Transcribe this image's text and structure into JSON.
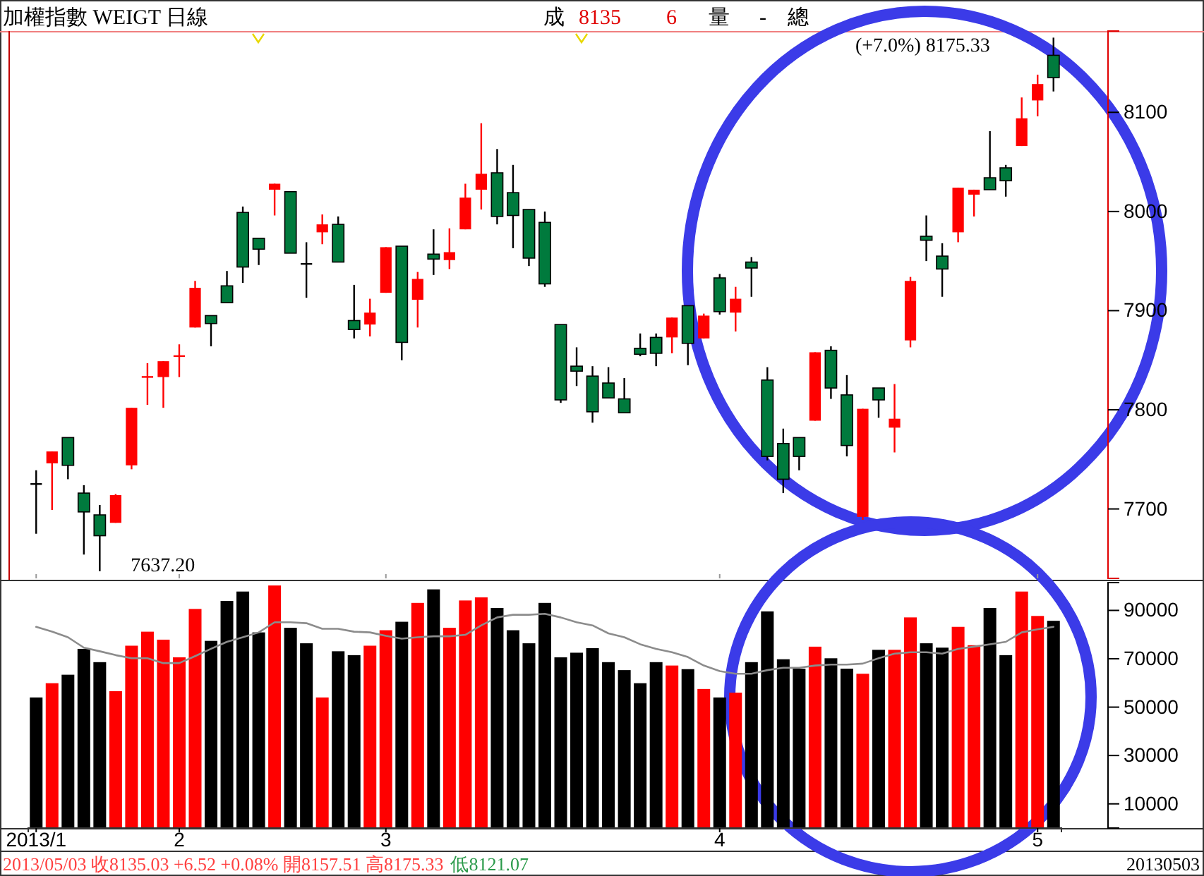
{
  "chart_data": [
    {
      "type": "candlestick",
      "title": "加權指數 WEIGT 日線",
      "categories": [
        "2013/1",
        null,
        null,
        null,
        null,
        null,
        null,
        null,
        null,
        "2",
        null,
        null,
        null,
        null,
        null,
        null,
        null,
        null,
        null,
        null,
        null,
        null,
        "3",
        null,
        null,
        null,
        null,
        null,
        null,
        null,
        null,
        null,
        null,
        null,
        null,
        null,
        null,
        null,
        null,
        null,
        null,
        null,
        null,
        "4",
        null,
        null,
        null,
        null,
        null,
        null,
        null,
        null,
        null,
        null,
        null,
        null,
        null,
        null,
        null,
        null,
        null,
        null,
        null,
        "5",
        null
      ],
      "ohlc": [
        [
          7725,
          7739,
          7675,
          7726
        ],
        [
          7746,
          7758,
          7699,
          7758
        ],
        [
          7772,
          7772,
          7730,
          7744
        ],
        [
          7716,
          7724,
          7654,
          7697
        ],
        [
          7694,
          7704,
          7637.2,
          7673
        ],
        [
          7686,
          7715,
          7686,
          7714
        ],
        [
          7744,
          7802,
          7740,
          7802
        ],
        [
          7833,
          7847,
          7805,
          7834
        ],
        [
          7833,
          7849,
          7802,
          7849
        ],
        [
          7854,
          7866,
          7833,
          7855
        ],
        [
          7883,
          7930,
          7883,
          7923
        ],
        [
          7895,
          7895,
          7864,
          7887
        ],
        [
          7925,
          7940,
          7908,
          7908
        ],
        [
          7999,
          8005,
          7928,
          7944
        ],
        [
          7973,
          7973,
          7946,
          7962
        ],
        [
          8022,
          8028,
          7996,
          8028
        ],
        [
          8020,
          8020,
          7958,
          7958
        ],
        [
          7948,
          7969,
          7913,
          7948
        ],
        [
          7979,
          7997,
          7967,
          7987
        ],
        [
          7987,
          7995,
          7949,
          7949
        ],
        [
          7890,
          7926,
          7872,
          7881
        ],
        [
          7886,
          7912,
          7874,
          7898
        ],
        [
          7918,
          7964,
          7918,
          7964
        ],
        [
          7965,
          7965,
          7850,
          7868
        ],
        [
          7911,
          7939,
          7883,
          7932
        ],
        [
          7957,
          7982,
          7936,
          7952
        ],
        [
          7951,
          7983,
          7942,
          7959
        ],
        [
          7982,
          8028,
          7982,
          8014
        ],
        [
          8022,
          8089,
          8002,
          8038
        ],
        [
          8039,
          8063,
          7987,
          7995
        ],
        [
          8019,
          8047,
          7963,
          7996
        ],
        [
          8002,
          8002,
          7945,
          7953
        ],
        [
          7989,
          8000,
          7924,
          7927
        ],
        [
          7886,
          7886,
          7807,
          7810
        ],
        [
          7844,
          7863,
          7824,
          7839
        ],
        [
          7834,
          7844,
          7787,
          7798
        ],
        [
          7827,
          7843,
          7812,
          7812
        ],
        [
          7811,
          7832,
          7797,
          7797
        ],
        [
          7862,
          7877,
          7854,
          7856
        ],
        [
          7873,
          7877,
          7844,
          7857
        ],
        [
          7873,
          7893,
          7857,
          7893
        ],
        [
          7905,
          7905,
          7845,
          7867
        ],
        [
          7872,
          7897,
          7872,
          7895
        ],
        [
          7933,
          7937,
          7896,
          7899
        ],
        [
          7898,
          7924,
          7879,
          7912
        ],
        [
          7949,
          7954,
          7914,
          7943
        ],
        [
          7830,
          7843,
          7749,
          7753
        ],
        [
          7766,
          7781,
          7716,
          7730
        ],
        [
          7772,
          7772,
          7739,
          7753
        ],
        [
          7789,
          7858,
          7789,
          7858
        ],
        [
          7860,
          7864,
          7811,
          7822
        ],
        [
          7815,
          7835,
          7753,
          7764
        ],
        [
          7692,
          7801,
          7689,
          7801
        ],
        [
          7822,
          7822,
          7792,
          7810
        ],
        [
          7782,
          7826,
          7757,
          7791
        ],
        [
          7870,
          7934,
          7863,
          7930
        ],
        [
          7975,
          7996,
          7950,
          7971
        ],
        [
          7955,
          7968,
          7914,
          7942
        ],
        [
          7979,
          8024,
          7969,
          8024
        ],
        [
          8017,
          8022,
          7995,
          8022
        ],
        [
          8034,
          8081,
          8022,
          8022
        ],
        [
          8044,
          8047,
          8015,
          8031
        ],
        [
          8066,
          8115,
          8066,
          8094
        ],
        [
          8112,
          8138,
          8096,
          8128.51
        ],
        [
          8157.51,
          8175.33,
          8121.07,
          8135.03
        ]
      ],
      "colors": [
        "#000000",
        "#ff0000",
        "#007a3d",
        "#007a3d",
        "#007a3d",
        "#ff0000",
        "#ff0000",
        "#ff0000",
        "#ff0000",
        "#ff0000",
        "#ff0000",
        "#007a3d",
        "#007a3d",
        "#007a3d",
        "#007a3d",
        "#ff0000",
        "#007a3d",
        "#000000",
        "#ff0000",
        "#007a3d",
        "#007a3d",
        "#ff0000",
        "#ff0000",
        "#007a3d",
        "#ff0000",
        "#007a3d",
        "#ff0000",
        "#ff0000",
        "#ff0000",
        "#007a3d",
        "#007a3d",
        "#007a3d",
        "#007a3d",
        "#007a3d",
        "#007a3d",
        "#007a3d",
        "#007a3d",
        "#007a3d",
        "#007a3d",
        "#007a3d",
        "#ff0000",
        "#007a3d",
        "#ff0000",
        "#007a3d",
        "#ff0000",
        "#007a3d",
        "#007a3d",
        "#007a3d",
        "#007a3d",
        "#ff0000",
        "#007a3d",
        "#007a3d",
        "#ff0000",
        "#007a3d",
        "#ff0000",
        "#ff0000",
        "#007a3d",
        "#007a3d",
        "#ff0000",
        "#ff0000",
        "#007a3d",
        "#007a3d",
        "#ff0000",
        "#ff0000",
        "#007a3d"
      ],
      "ylim": [
        7630,
        8182
      ],
      "yticks": [
        7700,
        7800,
        7900,
        8000,
        8100
      ],
      "tick_labels": "y",
      "annotations": [
        "(+7.0%) 8175.33",
        "7637.20",
        "成",
        "8135",
        "6",
        "量",
        "-",
        "總"
      ]
    },
    {
      "type": "bar",
      "categories": [
        "2013/1",
        null,
        null,
        null,
        null,
        null,
        null,
        null,
        null,
        "2",
        null,
        null,
        null,
        null,
        null,
        null,
        null,
        null,
        null,
        null,
        null,
        null,
        "3",
        null,
        null,
        null,
        null,
        null,
        null,
        null,
        null,
        null,
        null,
        null,
        null,
        null,
        null,
        null,
        null,
        null,
        null,
        null,
        null,
        "4",
        null,
        null,
        null,
        null,
        null,
        null,
        null,
        null,
        null,
        null,
        null,
        null,
        null,
        null,
        null,
        null,
        null,
        null,
        null,
        "5",
        null
      ],
      "series": [
        {
          "type": "bar",
          "values": [
            54000,
            59900,
            63400,
            74100,
            68600,
            56600,
            75400,
            81200,
            77900,
            70600,
            90600,
            77400,
            93900,
            97800,
            80900,
            100300,
            82800,
            76400,
            54000,
            73100,
            71500,
            75400,
            81800,
            85300,
            93100,
            98700,
            82800,
            94100,
            95400,
            91000,
            81800,
            76400,
            93100,
            70600,
            72500,
            74400,
            68600,
            65300,
            59900,
            68600,
            67200,
            65700,
            57500,
            54000,
            56000,
            68600,
            89600,
            69800,
            65900,
            75000,
            70200,
            65900,
            63800,
            73700,
            73700,
            87100,
            76400,
            74600,
            83200,
            75600,
            91000,
            71500,
            97800,
            87700,
            85700
          ],
          "colors": [
            "#000000",
            "#ff0000",
            "#000000",
            "#000000",
            "#000000",
            "#ff0000",
            "#ff0000",
            "#ff0000",
            "#ff0000",
            "#ff0000",
            "#ff0000",
            "#000000",
            "#000000",
            "#000000",
            "#000000",
            "#ff0000",
            "#000000",
            "#000000",
            "#ff0000",
            "#000000",
            "#000000",
            "#ff0000",
            "#ff0000",
            "#000000",
            "#ff0000",
            "#000000",
            "#ff0000",
            "#ff0000",
            "#ff0000",
            "#000000",
            "#000000",
            "#000000",
            "#000000",
            "#000000",
            "#000000",
            "#000000",
            "#000000",
            "#000000",
            "#000000",
            "#000000",
            "#ff0000",
            "#000000",
            "#ff0000",
            "#000000",
            "#ff0000",
            "#000000",
            "#000000",
            "#000000",
            "#000000",
            "#ff0000",
            "#000000",
            "#000000",
            "#ff0000",
            "#000000",
            "#ff0000",
            "#ff0000",
            "#000000",
            "#000000",
            "#ff0000",
            "#ff0000",
            "#000000",
            "#000000",
            "#ff0000",
            "#ff0000",
            "#000000"
          ]
        },
        {
          "type": "line",
          "color": "#8c8c8c",
          "values": [
            83200,
            81200,
            78900,
            74600,
            73100,
            71500,
            70200,
            70200,
            68200,
            68200,
            71100,
            74100,
            77000,
            78900,
            80900,
            85100,
            85100,
            84700,
            82400,
            82400,
            81200,
            80900,
            79500,
            78300,
            78900,
            79300,
            79300,
            79900,
            83800,
            87100,
            88200,
            88200,
            88600,
            87100,
            85100,
            83800,
            80500,
            78900,
            76000,
            74100,
            72700,
            70700,
            67200,
            64900,
            63800,
            63800,
            65300,
            66300,
            66300,
            67200,
            67600,
            67600,
            68000,
            70200,
            72100,
            72700,
            72700,
            72100,
            74100,
            75000,
            76000,
            77000,
            80900,
            82200,
            83200
          ]
        }
      ],
      "ylim": [
        0,
        101500
      ],
      "yticks": [
        10000,
        30000,
        50000,
        70000,
        90000
      ],
      "annotations": [
        "20130503",
        "2013/05/03 收8135.03 +6.52 +0.08% 開8157.51 高8175.33",
        "低8121.07"
      ]
    }
  ]
}
